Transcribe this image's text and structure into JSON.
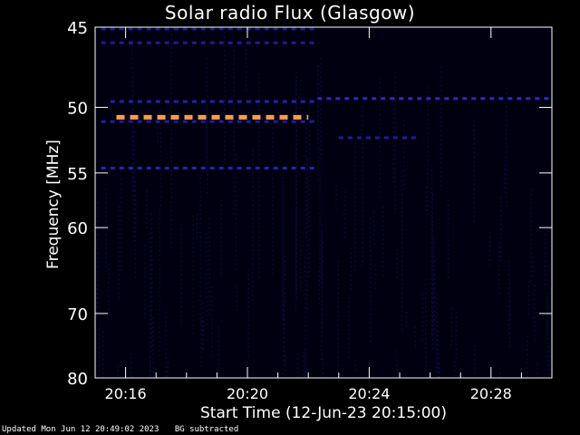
{
  "chart_data": {
    "type": "heatmap",
    "title": "Solar radio Flux (Glasgow)",
    "xlabel": "Start Time (12-Jun-23 20:15:00)",
    "ylabel": "Frequency [MHz]",
    "x_ticks": [
      "20:16",
      "20:20",
      "20:24",
      "20:28"
    ],
    "x_tick_minutes": [
      1,
      5,
      9,
      13
    ],
    "x_range_minutes": [
      0,
      15
    ],
    "y_ticks": [
      45,
      50,
      55,
      60,
      70,
      80
    ],
    "y_range": [
      45,
      80
    ],
    "y_scale": "reciprocal",
    "emission_bands": [
      {
        "freq": 45.1,
        "t_start": 0.2,
        "t_end": 7.3,
        "color": "#1a1a8c",
        "intensity": "low"
      },
      {
        "freq": 45.9,
        "t_start": 0.2,
        "t_end": 7.3,
        "color": "#1c1c99",
        "intensity": "low"
      },
      {
        "freq": 49.4,
        "t_start": 7.3,
        "t_end": 15.0,
        "color": "#2a2ad0",
        "intensity": "medium"
      },
      {
        "freq": 49.6,
        "t_start": 0.5,
        "t_end": 7.3,
        "color": "#2222b0",
        "intensity": "low"
      },
      {
        "freq": 50.7,
        "t_start": 0.7,
        "t_end": 7.0,
        "color": "#ff9a4d",
        "intensity": "high"
      },
      {
        "freq": 51.0,
        "t_start": 0.2,
        "t_end": 7.3,
        "color": "#1e1e9e",
        "intensity": "low"
      },
      {
        "freq": 52.2,
        "t_start": 8.0,
        "t_end": 10.6,
        "color": "#1c1c99",
        "intensity": "low"
      },
      {
        "freq": 54.6,
        "t_start": 0.2,
        "t_end": 7.3,
        "color": "#2424b8",
        "intensity": "medium"
      }
    ],
    "background": "#000010",
    "accent_text": "#ffffff"
  },
  "footer": {
    "updated": "Updated Mon Jun 12 20:49:02 2023",
    "note": "BG subtracted"
  }
}
